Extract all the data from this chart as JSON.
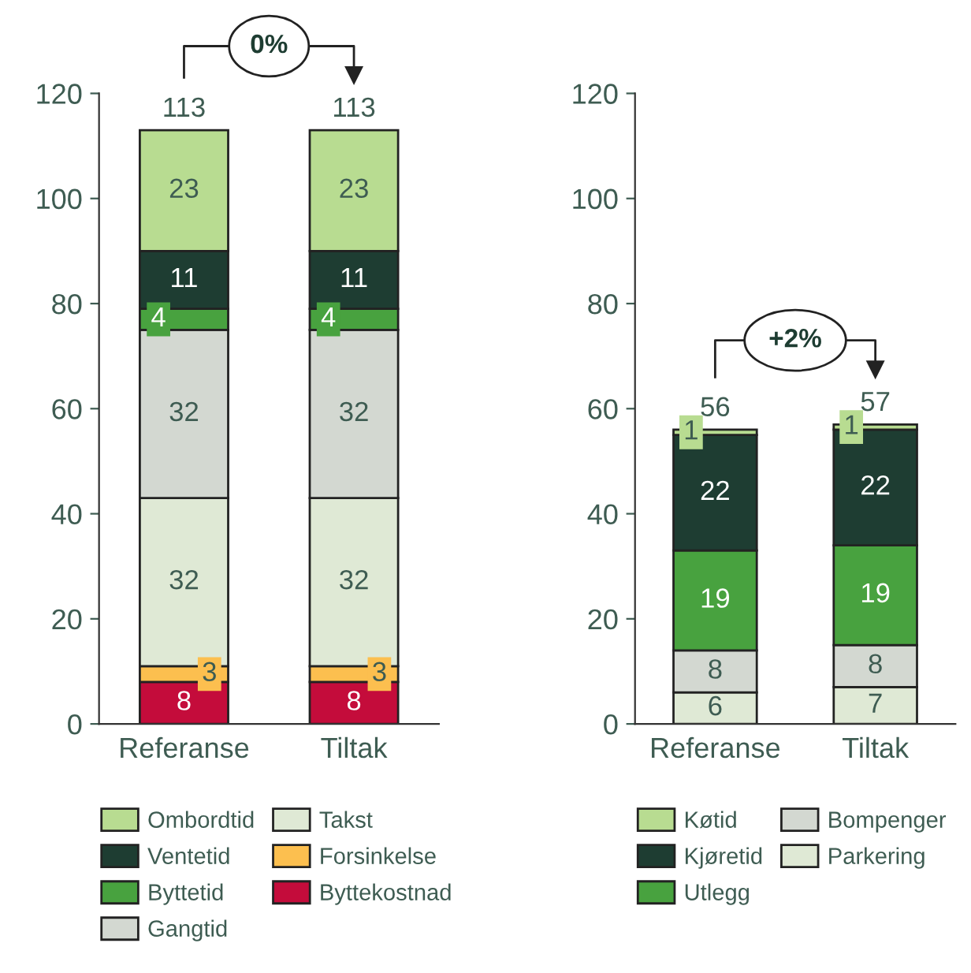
{
  "chart_data": [
    {
      "type": "bar",
      "stacked": true,
      "categories": [
        "Referanse",
        "Tiltak"
      ],
      "ylim": [
        0,
        120
      ],
      "yticks": [
        0,
        20,
        40,
        60,
        80,
        100,
        120
      ],
      "grid": false,
      "legend": "bottom",
      "data_labels": true,
      "totals": [
        "113",
        "113"
      ],
      "annotations": [
        "0%"
      ],
      "series": [
        {
          "name": "Byttekostnad",
          "color": "#c40c3b",
          "values": [
            8,
            8
          ]
        },
        {
          "name": "Forsinkelse",
          "color": "#fcbf4f",
          "values": [
            3,
            3
          ]
        },
        {
          "name": "Takst",
          "color": "#dfe9d5",
          "values": [
            32,
            32
          ]
        },
        {
          "name": "Gangtid",
          "color": "#d3d8d1",
          "values": [
            32,
            32
          ]
        },
        {
          "name": "Byttetid",
          "color": "#48a23f",
          "values": [
            4,
            4
          ]
        },
        {
          "name": "Ventetid",
          "color": "#1e3d32",
          "values": [
            11,
            11
          ]
        },
        {
          "name": "Ombordtid",
          "color": "#b8dc91",
          "values": [
            23,
            23
          ]
        }
      ]
    },
    {
      "type": "bar",
      "stacked": true,
      "categories": [
        "Referanse",
        "Tiltak"
      ],
      "ylim": [
        0,
        120
      ],
      "yticks": [
        0,
        20,
        40,
        60,
        80,
        100,
        120
      ],
      "grid": false,
      "legend": "bottom",
      "data_labels": true,
      "totals": [
        "56",
        "57"
      ],
      "annotations": [
        "+2%"
      ],
      "series": [
        {
          "name": "Parkering",
          "color": "#dfe9d5",
          "values": [
            6,
            7
          ]
        },
        {
          "name": "Bompenger",
          "color": "#d3d8d1",
          "values": [
            8,
            8
          ]
        },
        {
          "name": "Utlegg",
          "color": "#48a23f",
          "values": [
            19,
            19
          ]
        },
        {
          "name": "Kjøretid",
          "color": "#1e3d32",
          "values": [
            22,
            22
          ]
        },
        {
          "name": "Køtid",
          "color": "#b8dc91",
          "values": [
            1,
            1
          ]
        }
      ]
    }
  ]
}
